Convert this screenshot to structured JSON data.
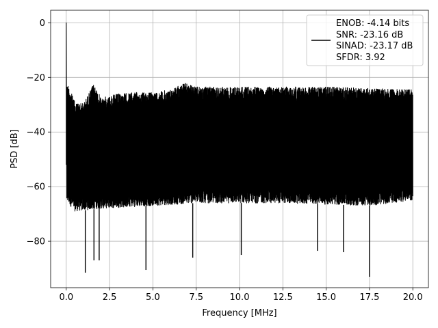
{
  "chart_data": {
    "type": "line",
    "title": "",
    "xlabel": "Frequency [MHz]",
    "ylabel": "PSD [dB]",
    "xlim": [
      -0.9,
      20.9
    ],
    "ylim": [
      -97,
      4.6
    ],
    "xticks": [
      0.0,
      2.5,
      5.0,
      7.5,
      10.0,
      12.5,
      15.0,
      17.5,
      20.0
    ],
    "xtick_labels": [
      "0.0",
      "2.5",
      "5.0",
      "7.5",
      "10.0",
      "12.5",
      "15.0",
      "17.5",
      "20.0"
    ],
    "yticks": [
      0,
      -20,
      -40,
      -60,
      -80
    ],
    "ytick_labels": [
      "0",
      "−20",
      "−40",
      "−60",
      "−80"
    ],
    "grid": true,
    "legend_position": "top-right",
    "series": [
      {
        "color": "#000000",
        "description": "Dense noise-like PSD spectrum: peak 0 dB at 0 MHz, upper envelope rising from about -30 dB near 0.5 MHz to about -24 dB from 7 to 20 MHz, lower envelope mostly between -60 and -70 dB with deep notches",
        "x_range": [
          0.0,
          20.0
        ],
        "dc_peak": {
          "x": 0.0,
          "y": 0.0
        },
        "upper_envelope": [
          [
            0.1,
            -22.5
          ],
          [
            0.5,
            -29.0
          ],
          [
            1.0,
            -29.5
          ],
          [
            1.6,
            -22.2
          ],
          [
            2.0,
            -27.5
          ],
          [
            3.0,
            -26.0
          ],
          [
            4.0,
            -25.5
          ],
          [
            5.0,
            -25.5
          ],
          [
            6.0,
            -24.5
          ],
          [
            6.8,
            -22.0
          ],
          [
            7.5,
            -23.5
          ],
          [
            10.0,
            -23.5
          ],
          [
            12.5,
            -23.5
          ],
          [
            15.0,
            -23.5
          ],
          [
            17.5,
            -24.0
          ],
          [
            20.0,
            -24.5
          ]
        ],
        "lower_envelope": [
          [
            0.1,
            -66.0
          ],
          [
            0.5,
            -69.0
          ],
          [
            2.0,
            -68.0
          ],
          [
            5.0,
            -67.0
          ],
          [
            7.5,
            -66.0
          ],
          [
            10.0,
            -66.0
          ],
          [
            12.5,
            -66.0
          ],
          [
            15.0,
            -66.5
          ],
          [
            17.5,
            -67.0
          ],
          [
            20.0,
            -65.0
          ]
        ],
        "deep_minima": [
          [
            1.1,
            -91.5
          ],
          [
            1.6,
            -87.0
          ],
          [
            1.9,
            -87.0
          ],
          [
            4.6,
            -90.5
          ],
          [
            7.3,
            -86.0
          ],
          [
            10.1,
            -85.0
          ],
          [
            14.5,
            -83.5
          ],
          [
            16.0,
            -84.0
          ],
          [
            17.5,
            -93.0
          ]
        ]
      }
    ],
    "legend": {
      "lines": [
        "ENOB: -4.14 bits",
        "SNR: -23.16 dB",
        "SINAD: -23.17 dB",
        "SFDR: 3.92"
      ]
    }
  }
}
